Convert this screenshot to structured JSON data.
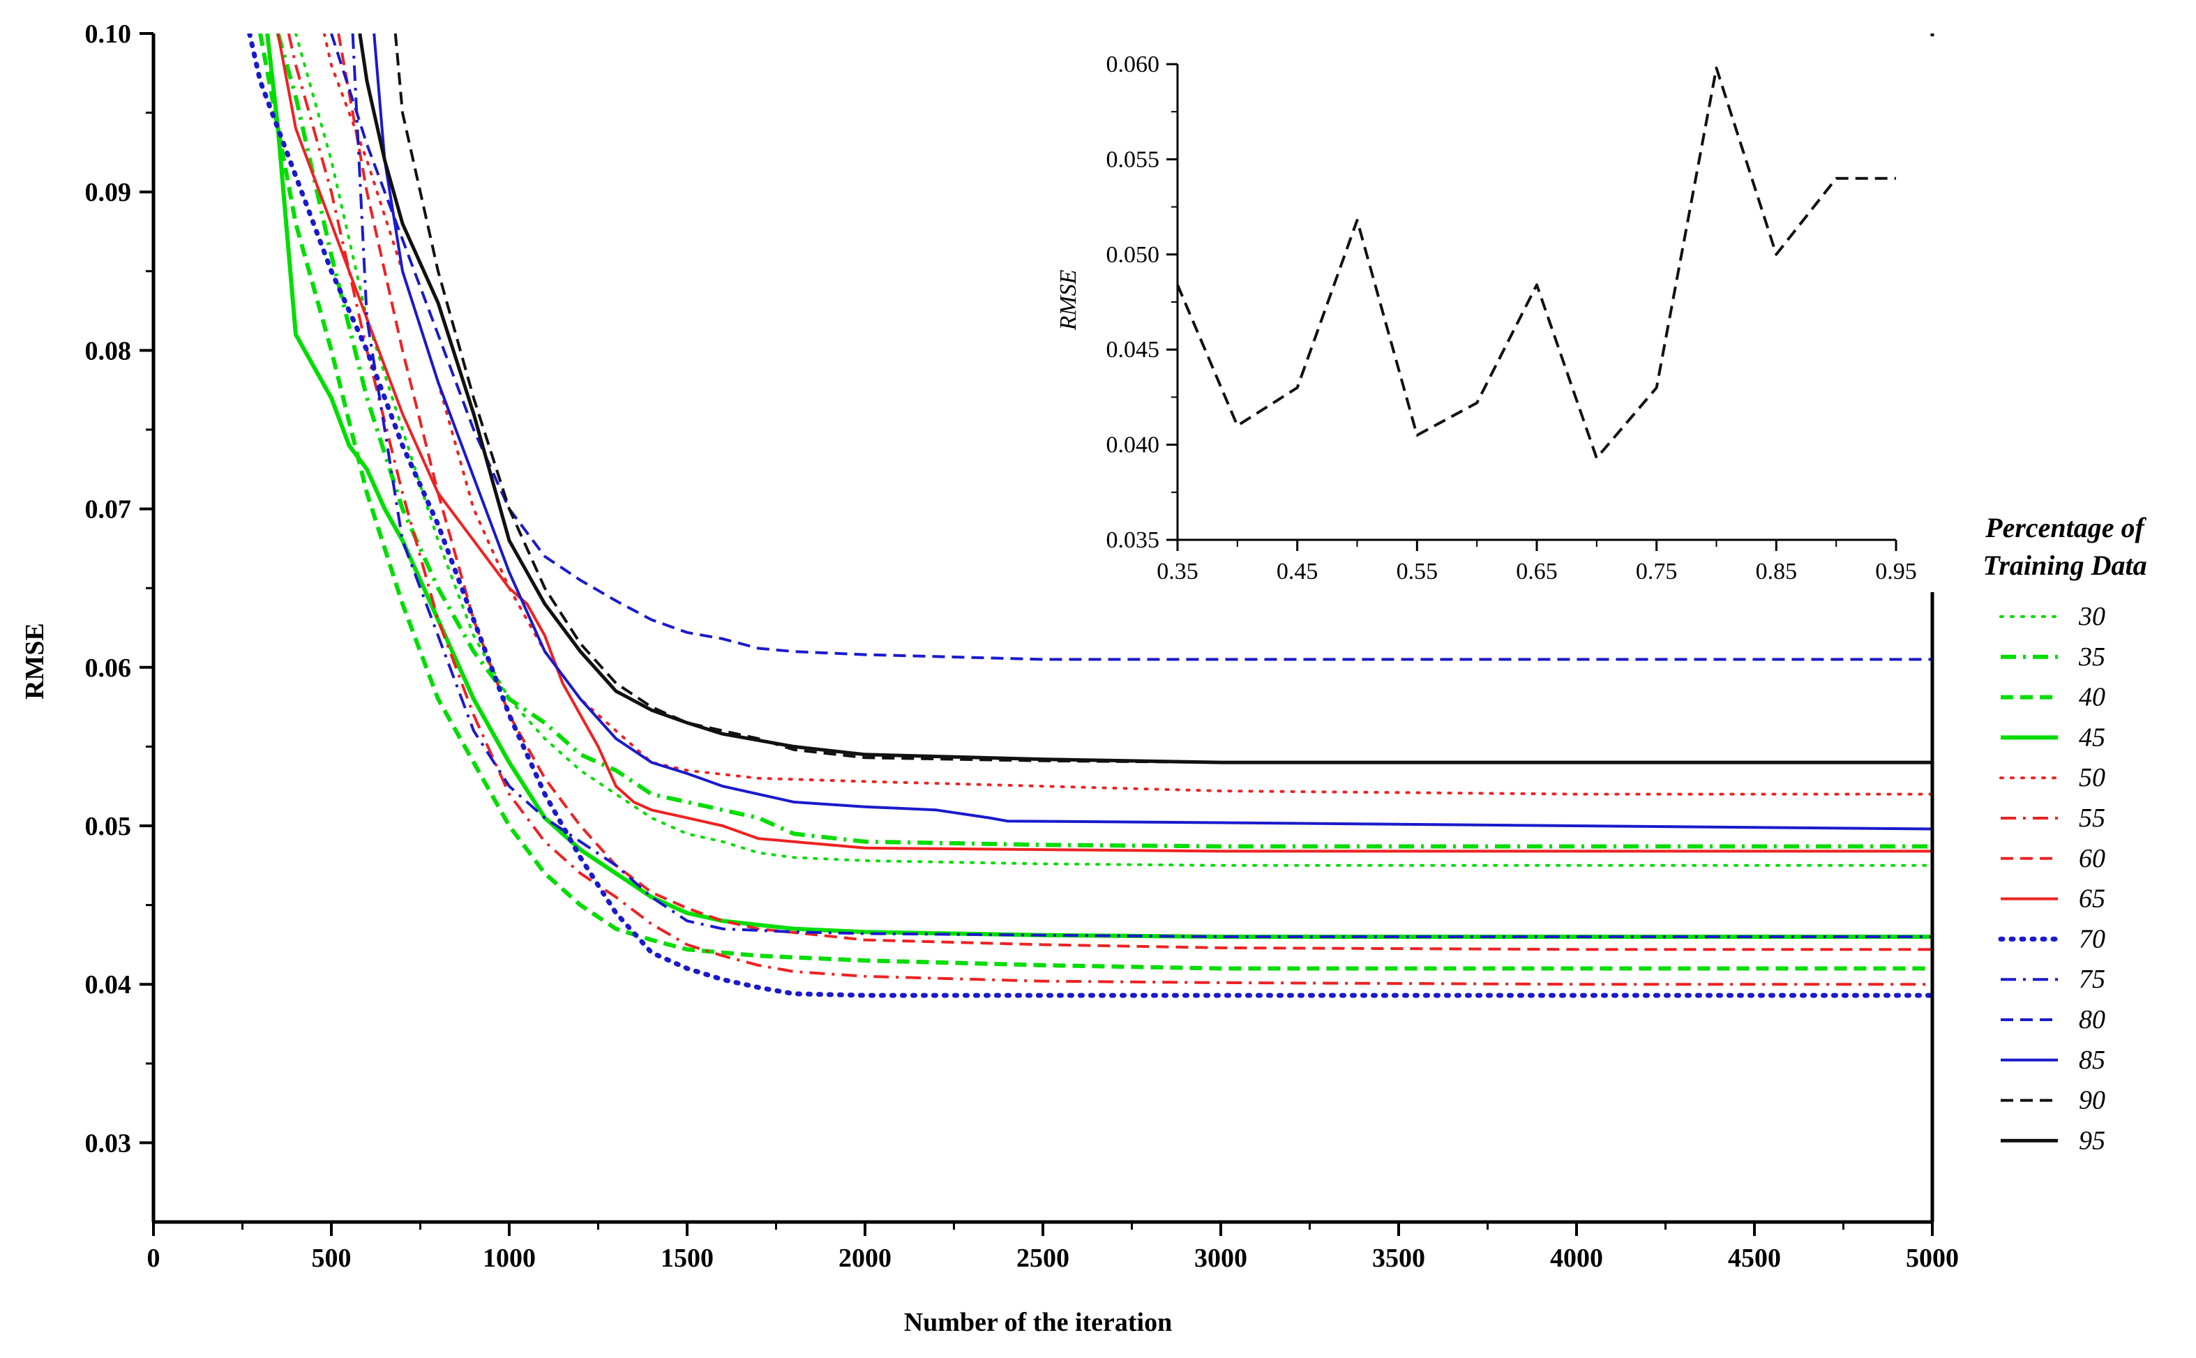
{
  "chart_data": [
    {
      "type": "line",
      "title": "",
      "xlabel": "Number of the iteration",
      "ylabel": "RMSE",
      "xlim": [
        0,
        5000
      ],
      "ylim": [
        0.025,
        0.1
      ],
      "xticks": [
        0,
        500,
        1000,
        1500,
        2000,
        2500,
        3000,
        3500,
        4000,
        4500,
        5000
      ],
      "yticks": [
        0.03,
        0.04,
        0.05,
        0.06,
        0.07,
        0.08,
        0.09,
        0.1
      ],
      "xtick_labels": [
        "0",
        "500",
        "1000",
        "1500",
        "2000",
        "2500",
        "3000",
        "3500",
        "4000",
        "4500",
        "5000"
      ],
      "ytick_labels": [
        "0.03",
        "0.04",
        "0.05",
        "0.06",
        "0.07",
        "0.08",
        "0.09",
        "0.10"
      ],
      "legend": {
        "title_line1": "Percentage of",
        "title_line2": "Training Data",
        "position": "right"
      },
      "series": [
        {
          "name": "30",
          "color": "#00dd00",
          "style": "dotted",
          "width": 4,
          "x": [
            400,
            500,
            600,
            700,
            800,
            900,
            1000,
            1100,
            1200,
            1300,
            1400,
            1500,
            1600,
            1700,
            1800,
            2000,
            2500,
            3000,
            4000,
            5000
          ],
          "y": [
            0.1,
            0.092,
            0.082,
            0.075,
            0.068,
            0.062,
            0.058,
            0.0555,
            0.0535,
            0.052,
            0.0505,
            0.0495,
            0.049,
            0.0483,
            0.048,
            0.0478,
            0.0476,
            0.0475,
            0.0475,
            0.0475
          ]
        },
        {
          "name": "35",
          "color": "#00dd00",
          "style": "dashdot",
          "width": 6,
          "x": [
            350,
            400,
            500,
            600,
            700,
            800,
            900,
            1000,
            1100,
            1200,
            1300,
            1400,
            1500,
            1600,
            1700,
            1800,
            2000,
            2500,
            3000,
            4000,
            5000
          ],
          "y": [
            0.1,
            0.096,
            0.086,
            0.077,
            0.07,
            0.065,
            0.061,
            0.058,
            0.0565,
            0.0545,
            0.0535,
            0.052,
            0.0515,
            0.051,
            0.0505,
            0.0495,
            0.049,
            0.0488,
            0.0487,
            0.0487,
            0.0487
          ]
        },
        {
          "name": "40",
          "color": "#00dd00",
          "style": "dashed",
          "width": 6,
          "x": [
            300,
            400,
            500,
            600,
            700,
            800,
            900,
            1000,
            1100,
            1200,
            1300,
            1400,
            1500,
            1700,
            2000,
            2500,
            3000,
            4000,
            5000
          ],
          "y": [
            0.1,
            0.088,
            0.08,
            0.071,
            0.064,
            0.058,
            0.054,
            0.05,
            0.047,
            0.045,
            0.0435,
            0.0428,
            0.0422,
            0.0418,
            0.0415,
            0.0412,
            0.041,
            0.041,
            0.041
          ]
        },
        {
          "name": "45",
          "color": "#00dd00",
          "style": "solid",
          "width": 6,
          "x": [
            320,
            350,
            400,
            450,
            500,
            550,
            600,
            650,
            700,
            800,
            900,
            1000,
            1100,
            1200,
            1300,
            1400,
            1500,
            1600,
            1800,
            2000,
            2500,
            3000,
            4000,
            5000
          ],
          "y": [
            0.1,
            0.094,
            0.081,
            0.079,
            0.077,
            0.074,
            0.0725,
            0.07,
            0.068,
            0.063,
            0.058,
            0.054,
            0.0505,
            0.0485,
            0.047,
            0.0455,
            0.0445,
            0.044,
            0.0435,
            0.0433,
            0.0431,
            0.043,
            0.043,
            0.043
          ]
        },
        {
          "name": "50",
          "color": "#ee2222",
          "style": "dotted",
          "width": 4,
          "x": [
            480,
            500,
            600,
            700,
            800,
            900,
            1000,
            1100,
            1200,
            1300,
            1400,
            1500,
            1700,
            2000,
            2500,
            3000,
            4000,
            5000
          ],
          "y": [
            0.1,
            0.098,
            0.092,
            0.085,
            0.078,
            0.07,
            0.065,
            0.061,
            0.058,
            0.056,
            0.054,
            0.0535,
            0.053,
            0.0528,
            0.0525,
            0.0522,
            0.052,
            0.052
          ]
        },
        {
          "name": "55",
          "color": "#ee2222",
          "style": "dashdot",
          "width": 4,
          "x": [
            380,
            400,
            500,
            600,
            700,
            800,
            900,
            1000,
            1100,
            1200,
            1300,
            1400,
            1500,
            1600,
            1700,
            1800,
            2000,
            2500,
            3000,
            4000,
            5000
          ],
          "y": [
            0.1,
            0.098,
            0.09,
            0.08,
            0.071,
            0.063,
            0.057,
            0.052,
            0.049,
            0.047,
            0.0455,
            0.0438,
            0.0425,
            0.0418,
            0.0412,
            0.0408,
            0.0405,
            0.0402,
            0.0401,
            0.04,
            0.04
          ]
        },
        {
          "name": "60",
          "color": "#ee2222",
          "style": "dashed",
          "width": 4,
          "x": [
            520,
            600,
            700,
            800,
            900,
            1000,
            1100,
            1200,
            1300,
            1400,
            1500,
            1600,
            1700,
            2000,
            2500,
            3000,
            4000,
            5000
          ],
          "y": [
            0.1,
            0.09,
            0.08,
            0.071,
            0.063,
            0.057,
            0.053,
            0.05,
            0.0475,
            0.0458,
            0.0448,
            0.044,
            0.0435,
            0.0428,
            0.0425,
            0.0423,
            0.0422,
            0.0422
          ]
        },
        {
          "name": "65",
          "color": "#ee2222",
          "style": "solid",
          "width": 4,
          "x": [
            350,
            400,
            500,
            600,
            700,
            800,
            900,
            1000,
            1050,
            1100,
            1150,
            1200,
            1250,
            1300,
            1350,
            1400,
            1500,
            1600,
            1700,
            1900,
            2000,
            2500,
            3000,
            4000,
            5000
          ],
          "y": [
            0.1,
            0.094,
            0.088,
            0.082,
            0.076,
            0.071,
            0.068,
            0.065,
            0.064,
            0.062,
            0.059,
            0.057,
            0.055,
            0.0525,
            0.0515,
            0.051,
            0.0505,
            0.05,
            0.0492,
            0.0488,
            0.0486,
            0.0485,
            0.0484,
            0.0484,
            0.0484
          ]
        },
        {
          "name": "70",
          "color": "#1a1acc",
          "style": "dotted",
          "width": 7,
          "x": [
            270,
            300,
            400,
            500,
            600,
            700,
            800,
            900,
            1000,
            1100,
            1200,
            1300,
            1400,
            1500,
            1600,
            1700,
            1800,
            2000,
            2500,
            3000,
            4000,
            5000
          ],
          "y": [
            0.1,
            0.097,
            0.091,
            0.085,
            0.08,
            0.074,
            0.069,
            0.063,
            0.057,
            0.052,
            0.048,
            0.0445,
            0.042,
            0.041,
            0.0403,
            0.0398,
            0.0394,
            0.0393,
            0.0393,
            0.0393,
            0.0393,
            0.0393
          ]
        },
        {
          "name": "75",
          "color": "#1a1acc",
          "style": "dashdot",
          "width": 4,
          "x": [
            560,
            600,
            700,
            800,
            900,
            1000,
            1100,
            1200,
            1300,
            1400,
            1500,
            1600,
            1800,
            2000,
            2500,
            3000,
            4000,
            5000
          ],
          "y": [
            0.1,
            0.082,
            0.068,
            0.062,
            0.056,
            0.0525,
            0.0505,
            0.049,
            0.0475,
            0.0455,
            0.044,
            0.0435,
            0.0433,
            0.0432,
            0.0431,
            0.043,
            0.043,
            0.043
          ]
        },
        {
          "name": "80",
          "color": "#1a1acc",
          "style": "dashed",
          "width": 4,
          "x": [
            500,
            600,
            700,
            800,
            900,
            1000,
            1100,
            1200,
            1300,
            1400,
            1500,
            1600,
            1700,
            1800,
            2000,
            2500,
            3000,
            4000,
            5000
          ],
          "y": [
            0.1,
            0.093,
            0.087,
            0.081,
            0.075,
            0.07,
            0.067,
            0.0655,
            0.0642,
            0.063,
            0.0622,
            0.0618,
            0.0612,
            0.061,
            0.0608,
            0.0605,
            0.0605,
            0.0605,
            0.0605
          ]
        },
        {
          "name": "85",
          "color": "#1a1acc",
          "style": "solid",
          "width": 4,
          "x": [
            620,
            650,
            700,
            800,
            900,
            1000,
            1100,
            1200,
            1300,
            1400,
            1500,
            1600,
            1800,
            2000,
            2200,
            2350,
            2400,
            3000,
            4000,
            5000
          ],
          "y": [
            0.1,
            0.092,
            0.085,
            0.078,
            0.072,
            0.066,
            0.061,
            0.058,
            0.0555,
            0.054,
            0.0533,
            0.0525,
            0.0515,
            0.0512,
            0.051,
            0.0505,
            0.0503,
            0.0502,
            0.05,
            0.0498
          ]
        },
        {
          "name": "90",
          "color": "#111111",
          "style": "dashed",
          "width": 4,
          "x": [
            680,
            700,
            800,
            900,
            1000,
            1100,
            1200,
            1300,
            1400,
            1500,
            1600,
            1700,
            1800,
            2000,
            2500,
            3000,
            4000,
            5000
          ],
          "y": [
            0.1,
            0.095,
            0.085,
            0.077,
            0.07,
            0.065,
            0.0615,
            0.059,
            0.0575,
            0.0565,
            0.056,
            0.0555,
            0.0548,
            0.0543,
            0.0541,
            0.054,
            0.054,
            0.054
          ]
        },
        {
          "name": "95",
          "color": "#111111",
          "style": "solid",
          "width": 5,
          "x": [
            580,
            600,
            650,
            700,
            800,
            900,
            1000,
            1100,
            1200,
            1300,
            1400,
            1500,
            1600,
            1800,
            2000,
            2500,
            3000,
            4000,
            5000
          ],
          "y": [
            0.1,
            0.097,
            0.092,
            0.088,
            0.083,
            0.076,
            0.068,
            0.064,
            0.061,
            0.0585,
            0.0573,
            0.0565,
            0.0558,
            0.055,
            0.0545,
            0.0542,
            0.054,
            0.054,
            0.054
          ]
        }
      ]
    },
    {
      "type": "line",
      "title": "",
      "xlabel": "",
      "ylabel": "RMSE",
      "xlim": [
        0.35,
        0.95
      ],
      "ylim": [
        0.035,
        0.06
      ],
      "xticks": [
        0.35,
        0.45,
        0.55,
        0.65,
        0.75,
        0.85,
        0.95
      ],
      "yticks": [
        0.035,
        0.04,
        0.045,
        0.05,
        0.055,
        0.06
      ],
      "xtick_labels": [
        "0.35",
        "0.45",
        "0.55",
        "0.65",
        "0.75",
        "0.85",
        "0.95"
      ],
      "ytick_labels": [
        "0.035",
        "0.040",
        "0.045",
        "0.050",
        "0.055",
        "0.060"
      ],
      "series": [
        {
          "name": "RMSE",
          "color": "#111111",
          "style": "dashed",
          "width": 4,
          "x": [
            0.35,
            0.4,
            0.45,
            0.5,
            0.55,
            0.6,
            0.65,
            0.7,
            0.75,
            0.8,
            0.85,
            0.9,
            0.95
          ],
          "y": [
            0.0484,
            0.041,
            0.043,
            0.0518,
            0.0405,
            0.0422,
            0.0484,
            0.0393,
            0.043,
            0.0598,
            0.05,
            0.054,
            0.054
          ]
        }
      ]
    }
  ]
}
